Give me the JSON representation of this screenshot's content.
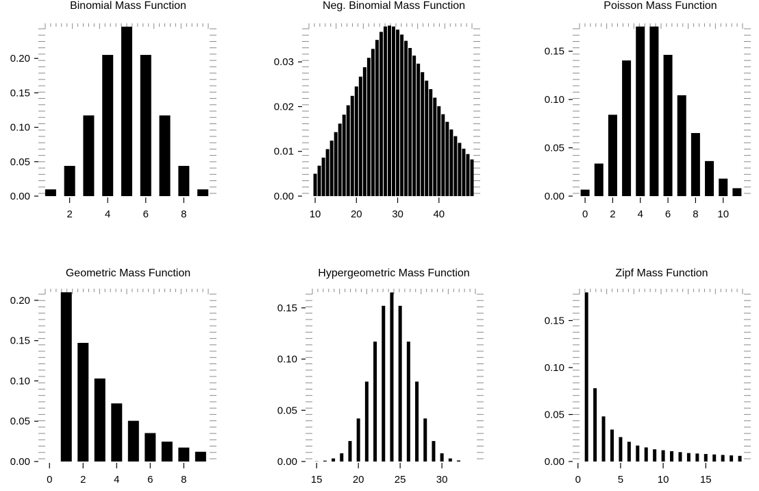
{
  "chart_data": [
    {
      "type": "bar",
      "title": "Binomial Mass Function",
      "xlabel": "",
      "ylabel": "",
      "x": [
        1,
        2,
        3,
        4,
        5,
        6,
        7,
        8,
        9
      ],
      "values": [
        0.0098,
        0.0439,
        0.1172,
        0.2051,
        0.2461,
        0.2051,
        0.1172,
        0.0439,
        0.0098
      ],
      "xlim": [
        0.5,
        9.5
      ],
      "ylim": [
        0,
        0.247
      ],
      "xticks": [
        2,
        4,
        6,
        8
      ],
      "yticks": [
        0.0,
        0.05,
        0.1,
        0.15,
        0.2
      ],
      "ytick_labels": [
        "0.00",
        "0.05",
        "0.10",
        "0.15",
        "0.20"
      ],
      "grid": false
    },
    {
      "type": "bar",
      "title": "Neg. Binomial Mass Function",
      "xlabel": "",
      "ylabel": "",
      "x": [
        10,
        11,
        12,
        13,
        14,
        15,
        16,
        17,
        18,
        19,
        20,
        21,
        22,
        23,
        24,
        25,
        26,
        27,
        28,
        29,
        30,
        31,
        32,
        33,
        34,
        35,
        36,
        37,
        38,
        39,
        40,
        41,
        42,
        43,
        44,
        45,
        46,
        47,
        48
      ],
      "values": [
        0.005,
        0.0068,
        0.0086,
        0.0105,
        0.0124,
        0.0143,
        0.0162,
        0.0182,
        0.0203,
        0.0224,
        0.0245,
        0.0267,
        0.0288,
        0.0309,
        0.0329,
        0.0349,
        0.0367,
        0.0379,
        0.0381,
        0.0379,
        0.0372,
        0.0361,
        0.0347,
        0.0331,
        0.0314,
        0.0296,
        0.0277,
        0.0258,
        0.0239,
        0.022,
        0.0201,
        0.0183,
        0.0166,
        0.0149,
        0.0134,
        0.0119,
        0.0106,
        0.0094,
        0.0082
      ],
      "xlim": [
        7.5,
        49
      ],
      "ylim": [
        0,
        0.038
      ],
      "xticks": [
        10,
        20,
        30,
        40
      ],
      "yticks": [
        0.0,
        0.01,
        0.02,
        0.03
      ],
      "ytick_labels": [
        "0.00",
        "0.01",
        "0.02",
        "0.03"
      ],
      "grid": false
    },
    {
      "type": "bar",
      "title": "Poisson Mass Function",
      "xlabel": "",
      "ylabel": "",
      "x": [
        0,
        1,
        2,
        3,
        4,
        5,
        6,
        7,
        8,
        9,
        10,
        11
      ],
      "values": [
        0.0067,
        0.0337,
        0.0842,
        0.1404,
        0.1755,
        0.1755,
        0.1462,
        0.1044,
        0.0653,
        0.0363,
        0.0181,
        0.0082
      ],
      "xlim": [
        -0.7,
        11.7
      ],
      "ylim": [
        0,
        0.176
      ],
      "xticks": [
        0,
        2,
        4,
        6,
        8,
        10
      ],
      "yticks": [
        0.0,
        0.05,
        0.1,
        0.15
      ],
      "ytick_labels": [
        "0.00",
        "0.05",
        "0.10",
        "0.15"
      ],
      "grid": false
    },
    {
      "type": "bar",
      "title": "Geometric Mass Function",
      "xlabel": "",
      "ylabel": "",
      "x": [
        1,
        2,
        3,
        4,
        5,
        6,
        7,
        8,
        9
      ],
      "values": [
        0.21,
        0.1472,
        0.103,
        0.0721,
        0.0505,
        0.0353,
        0.0247,
        0.0173,
        0.0121
      ],
      "xlim": [
        -0.5,
        9.7
      ],
      "ylim": [
        0,
        0.211
      ],
      "xticks": [
        0,
        2,
        4,
        6,
        8
      ],
      "yticks": [
        0.0,
        0.05,
        0.1,
        0.15,
        0.2
      ],
      "ytick_labels": [
        "0.00",
        "0.05",
        "0.10",
        "0.15",
        "0.20"
      ],
      "grid": false
    },
    {
      "type": "bar",
      "title": "Hypergeometric Mass Function",
      "xlabel": "",
      "ylabel": "",
      "x": [
        15,
        16,
        17,
        18,
        19,
        20,
        21,
        22,
        23,
        24,
        25,
        26,
        27,
        28,
        29,
        30,
        31,
        32
      ],
      "values": [
        0.0002,
        0.0008,
        0.003,
        0.008,
        0.02,
        0.042,
        0.078,
        0.117,
        0.152,
        0.165,
        0.152,
        0.117,
        0.078,
        0.042,
        0.02,
        0.008,
        0.003,
        0.001
      ],
      "xlim": [
        14,
        34.5
      ],
      "ylim": [
        0,
        0.166
      ],
      "xticks": [
        15,
        20,
        25,
        30
      ],
      "yticks": [
        0.0,
        0.05,
        0.1,
        0.15
      ],
      "ytick_labels": [
        "0.00",
        "0.05",
        "0.10",
        "0.15"
      ],
      "grid": false
    },
    {
      "type": "bar",
      "title": "Zipf Mass Function",
      "xlabel": "",
      "ylabel": "",
      "x": [
        1,
        2,
        3,
        4,
        5,
        6,
        7,
        8,
        9,
        10,
        11,
        12,
        13,
        14,
        15,
        16,
        17,
        18,
        19
      ],
      "values": [
        0.18,
        0.078,
        0.048,
        0.034,
        0.026,
        0.021,
        0.017,
        0.015,
        0.013,
        0.012,
        0.011,
        0.01,
        0.009,
        0.0085,
        0.008,
        0.0075,
        0.007,
        0.0065,
        0.006
      ],
      "xlim": [
        -0.3,
        19.8
      ],
      "ylim": [
        0,
        0.181
      ],
      "xticks": [
        0,
        5,
        10,
        15
      ],
      "yticks": [
        0.0,
        0.05,
        0.1,
        0.15
      ],
      "ytick_labels": [
        "0.00",
        "0.05",
        "0.10",
        "0.15"
      ],
      "grid": false
    }
  ]
}
